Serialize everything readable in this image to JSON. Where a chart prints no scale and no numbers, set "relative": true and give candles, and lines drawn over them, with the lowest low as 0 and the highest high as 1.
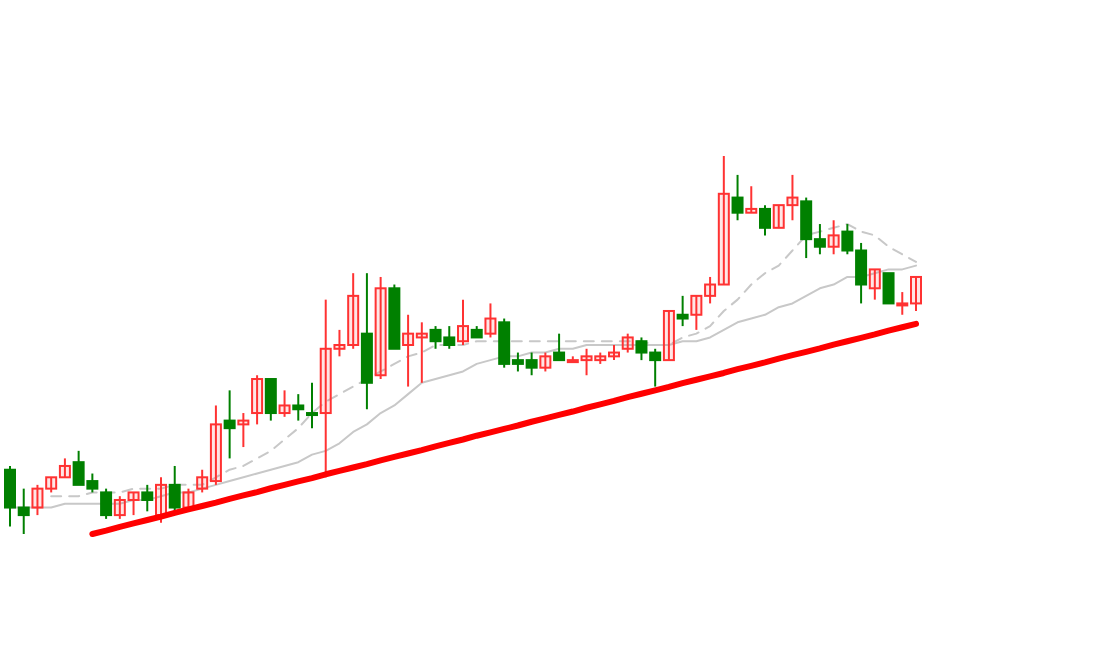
{
  "chart_data": {
    "type": "candlestick",
    "relative": true,
    "categories": [
      null,
      null,
      null,
      null,
      null,
      null,
      null,
      null,
      null,
      null,
      null,
      null,
      null,
      null,
      null,
      null,
      null,
      null,
      null,
      null,
      null,
      null,
      null,
      null,
      null,
      null,
      null,
      null,
      null,
      null,
      null,
      null,
      null,
      null,
      null,
      null,
      null,
      null,
      null,
      null,
      null,
      null,
      null,
      null,
      null,
      null,
      null,
      null,
      null,
      null,
      null,
      null,
      null,
      null,
      null,
      null,
      null,
      null,
      null,
      null,
      null,
      null,
      null,
      null,
      null,
      null,
      null
    ],
    "ohlc": [
      [
        0.17,
        0.18,
        0.02,
        0.07
      ],
      [
        0.07,
        0.12,
        0,
        0.05
      ],
      [
        0.07,
        0.13,
        0.05,
        0.12
      ],
      [
        0.12,
        0.15,
        0.11,
        0.15
      ],
      [
        0.15,
        0.2,
        0.15,
        0.18
      ],
      [
        0.19,
        0.22,
        0.13,
        0.13
      ],
      [
        0.14,
        0.16,
        0.11,
        0.12
      ],
      [
        0.11,
        0.12,
        0.04,
        0.05
      ],
      [
        0.05,
        0.1,
        0.04,
        0.09
      ],
      [
        0.09,
        0.11,
        0.05,
        0.11
      ],
      [
        0.11,
        0.13,
        0.06,
        0.09
      ],
      [
        0.05,
        0.15,
        0.03,
        0.13
      ],
      [
        0.13,
        0.18,
        0.06,
        0.07
      ],
      [
        0.07,
        0.12,
        0.06,
        0.11
      ],
      [
        0.12,
        0.17,
        0.11,
        0.15
      ],
      [
        0.14,
        0.34,
        0.13,
        0.29
      ],
      [
        0.3,
        0.38,
        0.2,
        0.28
      ],
      [
        0.29,
        0.32,
        0.23,
        0.3
      ],
      [
        0.32,
        0.42,
        0.29,
        0.41
      ],
      [
        0.41,
        0.41,
        0.3,
        0.32
      ],
      [
        0.32,
        0.38,
        0.31,
        0.34
      ],
      [
        0.34,
        0.37,
        0.3,
        0.33
      ],
      [
        0.32,
        0.4,
        0.28,
        0.32
      ],
      [
        0.32,
        0.62,
        0.15,
        0.49
      ],
      [
        0.49,
        0.54,
        0.47,
        0.5
      ],
      [
        0.5,
        0.69,
        0.49,
        0.63
      ],
      [
        0.53,
        0.69,
        0.33,
        0.4
      ],
      [
        0.42,
        0.68,
        0.41,
        0.65
      ],
      [
        0.65,
        0.66,
        0.49,
        0.49
      ],
      [
        0.5,
        0.58,
        0.39,
        0.53
      ],
      [
        0.52,
        0.56,
        0.4,
        0.53
      ],
      [
        0.54,
        0.55,
        0.49,
        0.51
      ],
      [
        0.52,
        0.55,
        0.49,
        0.5
      ],
      [
        0.51,
        0.62,
        0.5,
        0.55
      ],
      [
        0.54,
        0.55,
        0.52,
        0.52
      ],
      [
        0.53,
        0.61,
        0.52,
        0.57
      ],
      [
        0.56,
        0.57,
        0.44,
        0.45
      ],
      [
        0.46,
        0.48,
        0.43,
        0.45
      ],
      [
        0.46,
        0.48,
        0.42,
        0.44
      ],
      [
        0.44,
        0.48,
        0.43,
        0.47
      ],
      [
        0.48,
        0.53,
        0.46,
        0.46
      ],
      [
        0.46,
        0.47,
        0.46,
        0.46
      ],
      [
        0.46,
        0.49,
        0.42,
        0.47
      ],
      [
        0.46,
        0.48,
        0.45,
        0.47
      ],
      [
        0.47,
        0.5,
        0.46,
        0.48
      ],
      [
        0.49,
        0.53,
        0.48,
        0.52
      ],
      [
        0.51,
        0.52,
        0.46,
        0.48
      ],
      [
        0.48,
        0.49,
        0.39,
        0.46
      ],
      [
        0.46,
        0.59,
        0.46,
        0.59
      ],
      [
        0.58,
        0.63,
        0.55,
        0.57
      ],
      [
        0.58,
        0.63,
        0.54,
        0.63
      ],
      [
        0.63,
        0.68,
        0.61,
        0.66
      ],
      [
        0.66,
        1,
        0.66,
        0.9
      ],
      [
        0.89,
        0.95,
        0.83,
        0.85
      ],
      [
        0.85,
        0.92,
        0.85,
        0.86
      ],
      [
        0.86,
        0.87,
        0.79,
        0.81
      ],
      [
        0.81,
        0.87,
        0.81,
        0.87
      ],
      [
        0.87,
        0.95,
        0.83,
        0.89
      ],
      [
        0.88,
        0.89,
        0.73,
        0.78
      ],
      [
        0.78,
        0.82,
        0.74,
        0.76
      ],
      [
        0.76,
        0.83,
        0.74,
        0.79
      ],
      [
        0.8,
        0.82,
        0.74,
        0.75
      ],
      [
        0.75,
        0.77,
        0.61,
        0.66
      ],
      [
        0.65,
        0.7,
        0.62,
        0.7
      ],
      [
        0.69,
        0.69,
        0.61,
        0.61
      ],
      [
        0.61,
        0.64,
        0.58,
        0.61
      ],
      [
        0.61,
        0.68,
        0.59,
        0.68
      ]
    ],
    "colors": [
      "#008000",
      "#008000",
      "#ff3232",
      "#ff3232",
      "#ff3232",
      "#008000",
      "#008000",
      "#008000",
      "#ff3232",
      "#ff3232",
      "#008000",
      "#ff3232",
      "#008000",
      "#ff3232",
      "#ff3232",
      "#ff3232",
      "#008000",
      "#ff3232",
      "#ff3232",
      "#008000",
      "#ff3232",
      "#008000",
      "#008000",
      "#ff3232",
      "#ff3232",
      "#ff3232",
      "#008000",
      "#ff3232",
      "#008000",
      "#ff3232",
      "#ff3232",
      "#008000",
      "#008000",
      "#ff3232",
      "#008000",
      "#ff3232",
      "#008000",
      "#008000",
      "#008000",
      "#ff3232",
      "#008000",
      "#ff3232",
      "#ff3232",
      "#ff3232",
      "#ff3232",
      "#ff3232",
      "#008000",
      "#008000",
      "#ff3232",
      "#008000",
      "#ff3232",
      "#ff3232",
      "#ff3232",
      "#008000",
      "#ff3232",
      "#008000",
      "#ff3232",
      "#ff3232",
      "#008000",
      "#008000",
      "#ff3232",
      "#008000",
      "#008000",
      "#ff3232",
      "#008000",
      "#ff3232",
      "#ff3232"
    ],
    "series": [
      {
        "type": "line",
        "color": "#c8c8c8",
        "line_style": "solid",
        "values": [
          0.07,
          0.07,
          0.07,
          0.07,
          0.08,
          0.08,
          0.08,
          0.08,
          0.08,
          0.09,
          0.09,
          0.1,
          0.11,
          0.11,
          0.12,
          0.13,
          0.14,
          0.15,
          0.16,
          0.17,
          0.18,
          0.19,
          0.21,
          0.22,
          0.24,
          0.27,
          0.29,
          0.32,
          0.34,
          0.37,
          0.4,
          0.41,
          0.42,
          0.43,
          0.45,
          0.46,
          0.47,
          0.47,
          0.48,
          0.48,
          0.49,
          0.49,
          0.5,
          0.5,
          0.5,
          0.5,
          0.5,
          0.5,
          0.5,
          0.51,
          0.51,
          0.52,
          0.54,
          0.56,
          0.57,
          0.58,
          0.6,
          0.61,
          0.63,
          0.65,
          0.66,
          0.68,
          0.68,
          0.69,
          0.7,
          0.7,
          0.71
        ]
      },
      {
        "type": "line",
        "color": "#c8c8c8",
        "line_style": "dashed",
        "values": [
          null,
          null,
          null,
          0.1,
          0.1,
          0.1,
          0.11,
          0.11,
          0.11,
          0.12,
          0.12,
          0.12,
          0.13,
          0.13,
          0.13,
          0.15,
          0.17,
          0.18,
          0.2,
          0.22,
          0.25,
          0.28,
          0.32,
          0.35,
          0.37,
          0.39,
          0.41,
          0.43,
          0.45,
          0.47,
          0.48,
          0.5,
          0.5,
          0.5,
          0.51,
          0.51,
          0.51,
          0.51,
          0.51,
          0.51,
          0.51,
          0.51,
          0.51,
          0.51,
          0.51,
          0.51,
          0.51,
          0.5,
          0.5,
          0.52,
          0.53,
          0.55,
          0.59,
          0.62,
          0.66,
          0.69,
          0.71,
          0.75,
          0.79,
          0.8,
          0.81,
          0.82,
          0.8,
          0.79,
          0.76,
          0.74,
          0.72
        ]
      },
      {
        "type": "line",
        "color": "#ff0000",
        "line_style": "solid",
        "values": [
          null,
          null,
          null,
          null,
          null,
          null,
          0,
          0.009,
          0.019,
          0.028,
          0.037,
          0.046,
          0.056,
          0.065,
          0.074,
          0.083,
          0.093,
          0.102,
          0.111,
          0.121,
          0.13,
          0.139,
          0.148,
          0.158,
          0.167,
          0.176,
          0.185,
          0.195,
          0.204,
          0.213,
          0.222,
          0.232,
          0.241,
          0.25,
          0.26,
          0.269,
          0.278,
          0.287,
          0.297,
          0.306,
          0.315,
          0.324,
          0.334,
          0.343,
          0.352,
          0.362,
          0.371,
          0.38,
          0.389,
          0.399,
          0.408,
          0.417,
          0.426,
          0.436,
          0.445,
          0.454,
          0.464,
          0.473,
          0.482,
          0.491,
          0.501,
          0.51,
          0.519,
          0.528,
          0.538,
          0.547,
          0.556
        ]
      }
    ]
  }
}
